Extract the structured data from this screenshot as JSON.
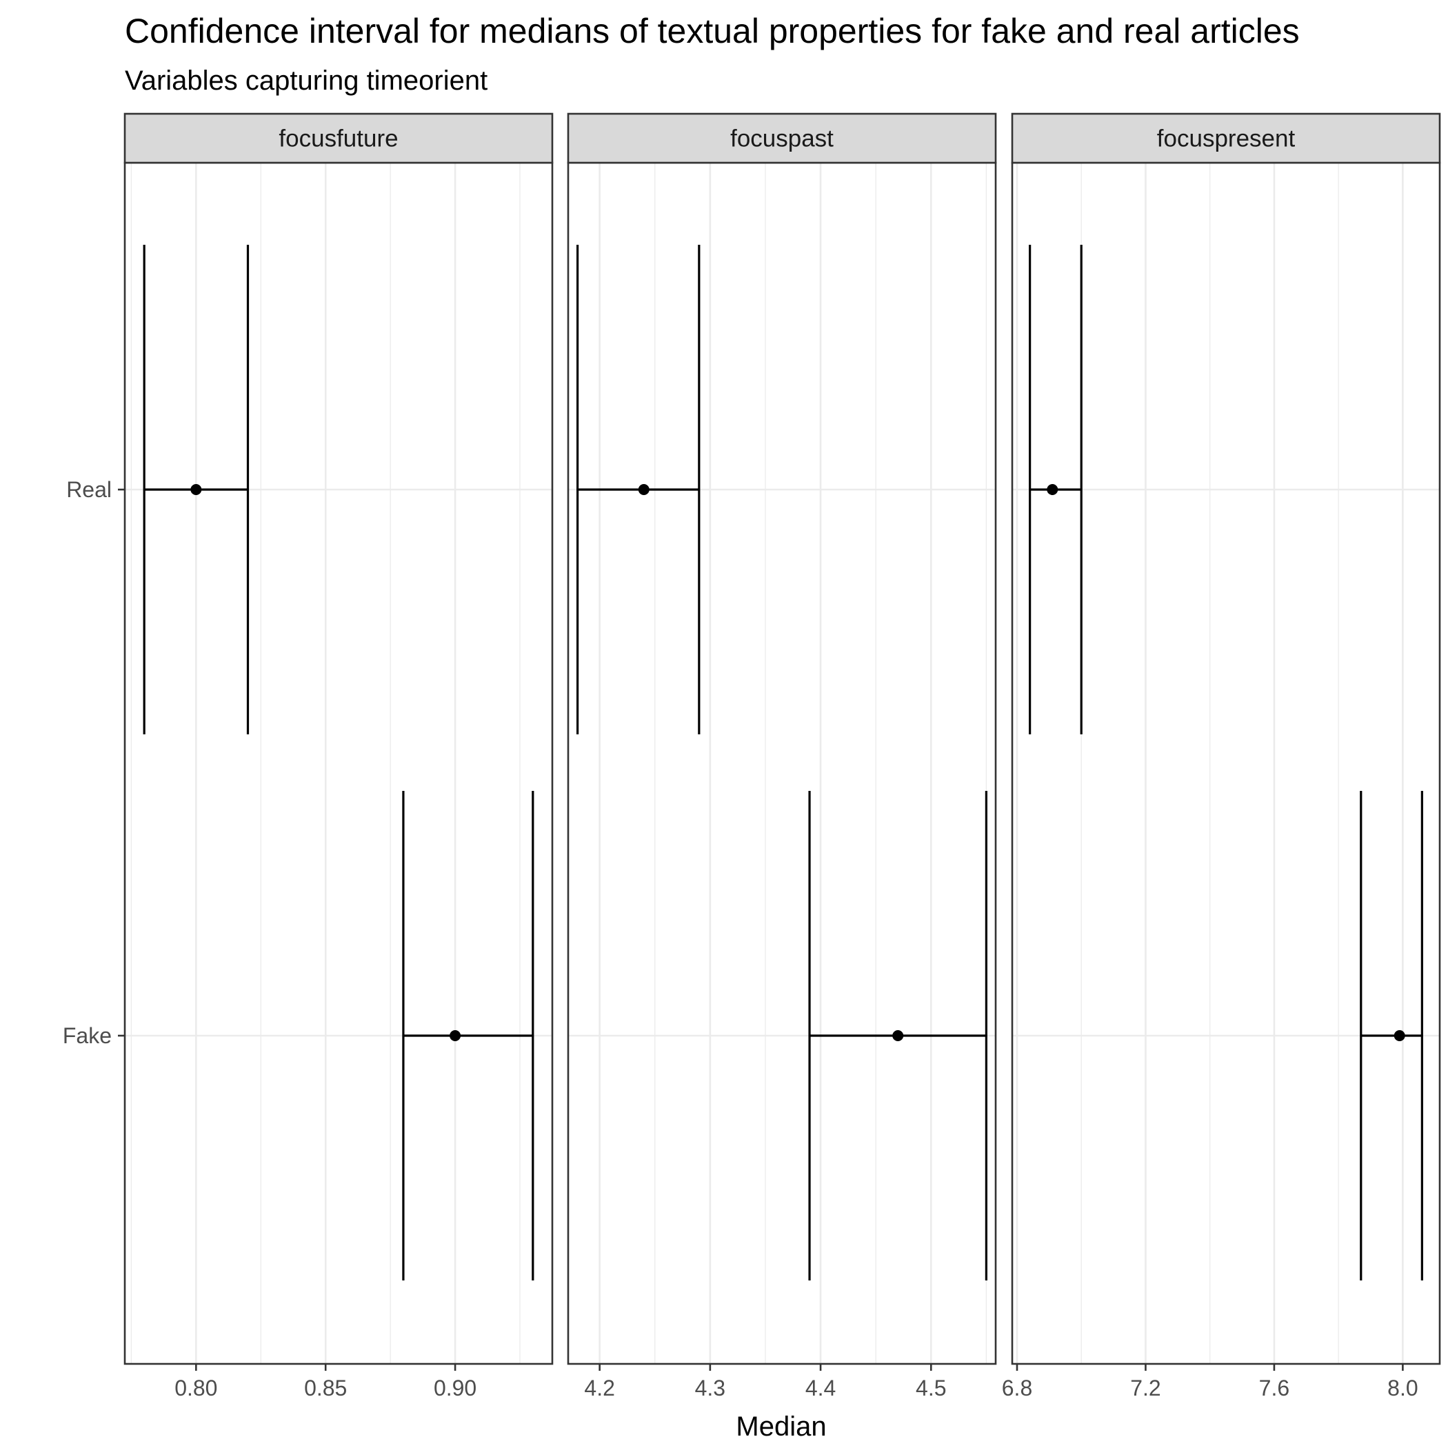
{
  "chart_data": {
    "type": "errorbar",
    "title": "Confidence interval for medians of textual properties for fake and real articles",
    "subtitle": "Variables capturing timeorient",
    "xlabel": "Median",
    "ylabel": "",
    "categories": [
      "Real",
      "Fake"
    ],
    "grid": true,
    "point_color": "#000000",
    "line_color": "#000000",
    "panels": [
      {
        "name": "focusfuture",
        "xlim": [
          0.7725,
          0.9375
        ],
        "ticks": [
          0.8,
          0.85,
          0.9
        ],
        "tick_labels": [
          "0.80",
          "0.85",
          "0.90"
        ],
        "points": [
          {
            "category": "Real",
            "median": 0.8,
            "lower": 0.78,
            "upper": 0.82
          },
          {
            "category": "Fake",
            "median": 0.9,
            "lower": 0.88,
            "upper": 0.93
          }
        ]
      },
      {
        "name": "focuspast",
        "xlim": [
          4.1715,
          4.5585
        ],
        "ticks": [
          4.2,
          4.3,
          4.4,
          4.5
        ],
        "tick_labels": [
          "4.2",
          "4.3",
          "4.4",
          "4.5"
        ],
        "points": [
          {
            "category": "Real",
            "median": 4.24,
            "lower": 4.18,
            "upper": 4.29
          },
          {
            "category": "Fake",
            "median": 4.47,
            "lower": 4.39,
            "upper": 4.55
          }
        ]
      },
      {
        "name": "focuspresent",
        "xlim": [
          6.785,
          8.115
        ],
        "ticks": [
          6.8,
          7.2,
          7.6,
          8.0
        ],
        "tick_labels": [
          "6.8",
          "7.2",
          "7.6",
          "8.0"
        ],
        "points": [
          {
            "category": "Real",
            "median": 6.91,
            "lower": 6.84,
            "upper": 7.0
          },
          {
            "category": "Fake",
            "median": 7.99,
            "lower": 7.87,
            "upper": 8.06
          }
        ]
      }
    ]
  }
}
